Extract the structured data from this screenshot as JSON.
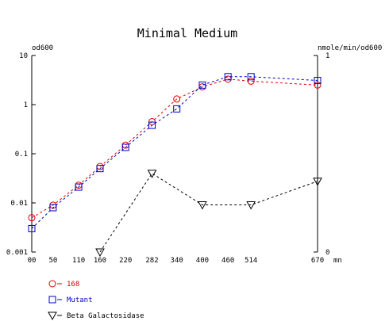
{
  "chart_data": {
    "type": "line",
    "title": "Minimal Medium",
    "left_axis_label": "od600",
    "right_axis_label": "nmole/min/od600",
    "x_unit": "mn",
    "x_ticks": [
      "00",
      "50",
      "110",
      "160",
      "220",
      "282",
      "340",
      "400",
      "460",
      "514",
      "670"
    ],
    "x_tick_values": [
      0,
      50,
      110,
      160,
      220,
      282,
      340,
      400,
      460,
      514,
      670
    ],
    "y_left": {
      "scale": "log",
      "ylim": [
        0.001,
        10
      ],
      "ticks": [
        "10",
        "1",
        "0.1",
        "0.01",
        "0.001"
      ],
      "tick_values": [
        10,
        1,
        0.1,
        0.01,
        0.001
      ]
    },
    "y_right": {
      "scale": "linear",
      "ylim": [
        0,
        1
      ],
      "ticks": [
        "1",
        "0"
      ],
      "tick_values": [
        1,
        0
      ]
    },
    "grid": false,
    "legend_position": "bottom-left",
    "series": [
      {
        "name": "168",
        "axis": "left",
        "marker": "circle",
        "color": "#e00000",
        "x": [
          0,
          50,
          110,
          160,
          220,
          282,
          340,
          400,
          460,
          514,
          670
        ],
        "y": [
          0.005,
          0.009,
          0.023,
          0.055,
          0.15,
          0.45,
          1.3,
          2.3,
          3.3,
          3.0,
          2.5
        ]
      },
      {
        "name": "Mutant",
        "axis": "left",
        "marker": "square",
        "color": "#0000cc",
        "x": [
          0,
          50,
          110,
          160,
          220,
          282,
          340,
          400,
          460,
          514,
          670
        ],
        "y": [
          0.003,
          0.008,
          0.021,
          0.05,
          0.135,
          0.38,
          0.82,
          2.5,
          3.7,
          3.7,
          3.1
        ]
      },
      {
        "name": "Beta Galactosidase",
        "axis": "right",
        "marker": "triangle-down",
        "color": "#000000",
        "x": [
          160,
          282,
          400,
          514,
          670
        ],
        "y": [
          0.0,
          0.4,
          0.24,
          0.24,
          0.36
        ]
      }
    ]
  }
}
